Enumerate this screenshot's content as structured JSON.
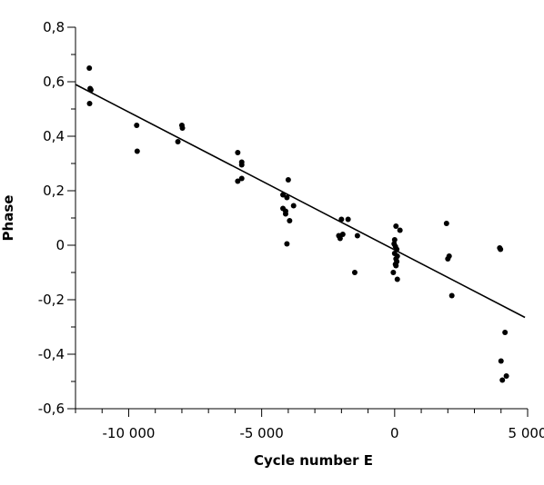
{
  "chart_data": {
    "type": "scatter",
    "xlabel": "Cycle number E",
    "ylabel": "Phase",
    "xlim": [
      -12000,
      5000
    ],
    "ylim": [
      -0.6,
      0.8
    ],
    "x_ticks": [
      -10000,
      -5000,
      0,
      5000
    ],
    "x_tick_labels": [
      "-10 000",
      "-5 000",
      "0",
      "5 000"
    ],
    "y_ticks": [
      -0.6,
      -0.4,
      -0.2,
      0,
      0.2,
      0.4,
      0.6,
      0.8
    ],
    "y_tick_labels": [
      "-0,6",
      "-0,4",
      "-0,2",
      "0",
      "0,2",
      "0,4",
      "0,6",
      "0,8"
    ],
    "x_minor_step": 1000,
    "y_minor_step": 0.1,
    "grid": false,
    "series": [
      {
        "type": "scatter",
        "points": [
          {
            "x": -11480,
            "y": 0.65
          },
          {
            "x": -11450,
            "y": 0.575
          },
          {
            "x": -11420,
            "y": 0.57
          },
          {
            "x": -11470,
            "y": 0.52
          },
          {
            "x": -9700,
            "y": 0.44
          },
          {
            "x": -9680,
            "y": 0.345
          },
          {
            "x": -8000,
            "y": 0.44
          },
          {
            "x": -7980,
            "y": 0.43
          },
          {
            "x": -8150,
            "y": 0.38
          },
          {
            "x": -5900,
            "y": 0.34
          },
          {
            "x": -5750,
            "y": 0.305
          },
          {
            "x": -5750,
            "y": 0.295
          },
          {
            "x": -5750,
            "y": 0.245
          },
          {
            "x": -5900,
            "y": 0.235
          },
          {
            "x": -4200,
            "y": 0.185
          },
          {
            "x": -4000,
            "y": 0.24
          },
          {
            "x": -4050,
            "y": 0.175
          },
          {
            "x": -3800,
            "y": 0.145
          },
          {
            "x": -4200,
            "y": 0.135
          },
          {
            "x": -4100,
            "y": 0.125
          },
          {
            "x": -4100,
            "y": 0.115
          },
          {
            "x": -3950,
            "y": 0.09
          },
          {
            "x": -4050,
            "y": 0.005
          },
          {
            "x": -2000,
            "y": 0.095
          },
          {
            "x": -1750,
            "y": 0.095
          },
          {
            "x": -1400,
            "y": 0.035
          },
          {
            "x": -2100,
            "y": 0.035
          },
          {
            "x": -2050,
            "y": 0.025
          },
          {
            "x": -1950,
            "y": 0.04
          },
          {
            "x": -1500,
            "y": -0.1
          },
          {
            "x": 50,
            "y": 0.07
          },
          {
            "x": 200,
            "y": 0.055
          },
          {
            "x": 0,
            "y": 0.02
          },
          {
            "x": -20,
            "y": 0.005
          },
          {
            "x": 30,
            "y": -0.005
          },
          {
            "x": 80,
            "y": -0.015
          },
          {
            "x": 0,
            "y": -0.03
          },
          {
            "x": 100,
            "y": -0.04
          },
          {
            "x": 50,
            "y": -0.05
          },
          {
            "x": 80,
            "y": -0.06
          },
          {
            "x": 30,
            "y": -0.07
          },
          {
            "x": 50,
            "y": -0.075
          },
          {
            "x": -50,
            "y": -0.1
          },
          {
            "x": 100,
            "y": -0.125
          },
          {
            "x": 1950,
            "y": 0.08
          },
          {
            "x": 2050,
            "y": -0.04
          },
          {
            "x": 2000,
            "y": -0.05
          },
          {
            "x": 2150,
            "y": -0.185
          },
          {
            "x": 3950,
            "y": -0.01
          },
          {
            "x": 3980,
            "y": -0.015
          },
          {
            "x": 4150,
            "y": -0.32
          },
          {
            "x": 4000,
            "y": -0.425
          },
          {
            "x": 4200,
            "y": -0.48
          },
          {
            "x": 4050,
            "y": -0.495
          }
        ]
      },
      {
        "type": "line",
        "points": [
          {
            "x": -12000,
            "y": 0.59
          },
          {
            "x": 4900,
            "y": -0.265
          }
        ]
      }
    ]
  }
}
